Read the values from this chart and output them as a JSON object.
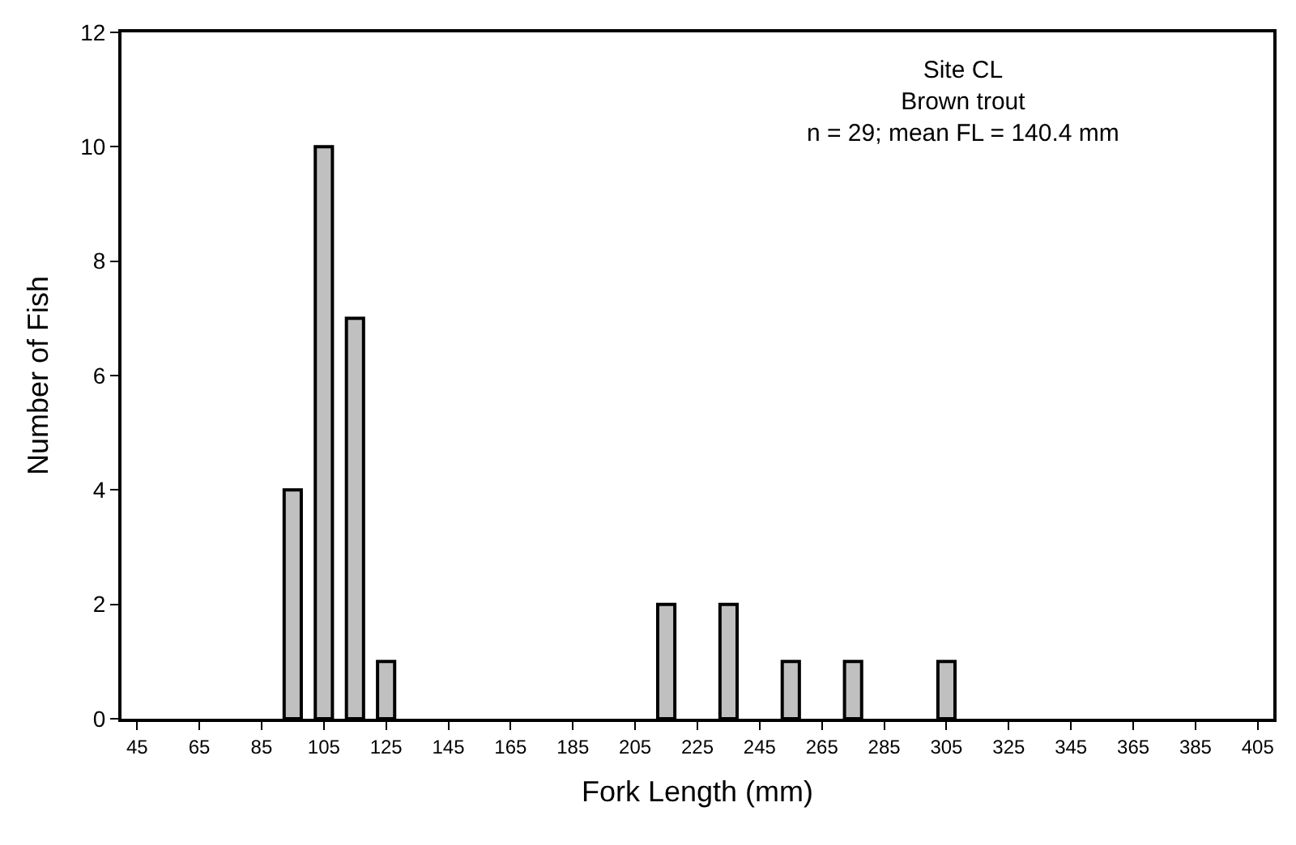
{
  "chart_data": {
    "type": "bar",
    "xlabel": "Fork Length (mm)",
    "ylabel": "Number of Fish",
    "categories": [
      "45",
      null,
      "65",
      null,
      "85",
      null,
      "105",
      null,
      "125",
      null,
      "145",
      null,
      "165",
      null,
      "185",
      null,
      "205",
      null,
      "225",
      null,
      "245",
      null,
      "265",
      null,
      "285",
      null,
      "305",
      null,
      "325",
      null,
      "345",
      null,
      "365",
      null,
      "385",
      null,
      "405"
    ],
    "values": [
      0,
      0,
      0,
      0,
      0,
      4,
      10,
      7,
      1,
      0,
      0,
      0,
      0,
      0,
      0,
      0,
      0,
      2,
      0,
      2,
      0,
      1,
      0,
      1,
      0,
      0,
      1,
      0,
      0,
      0,
      0,
      0,
      0,
      0,
      0,
      0,
      0
    ],
    "color": "#c0c0c0",
    "ylim": [
      0,
      12
    ],
    "yticks": [
      0,
      2,
      4,
      6,
      8,
      10,
      12
    ],
    "annotations": [
      "Site CL\nBrown trout\nn = 29; mean FL = 140.4 mm"
    ]
  }
}
